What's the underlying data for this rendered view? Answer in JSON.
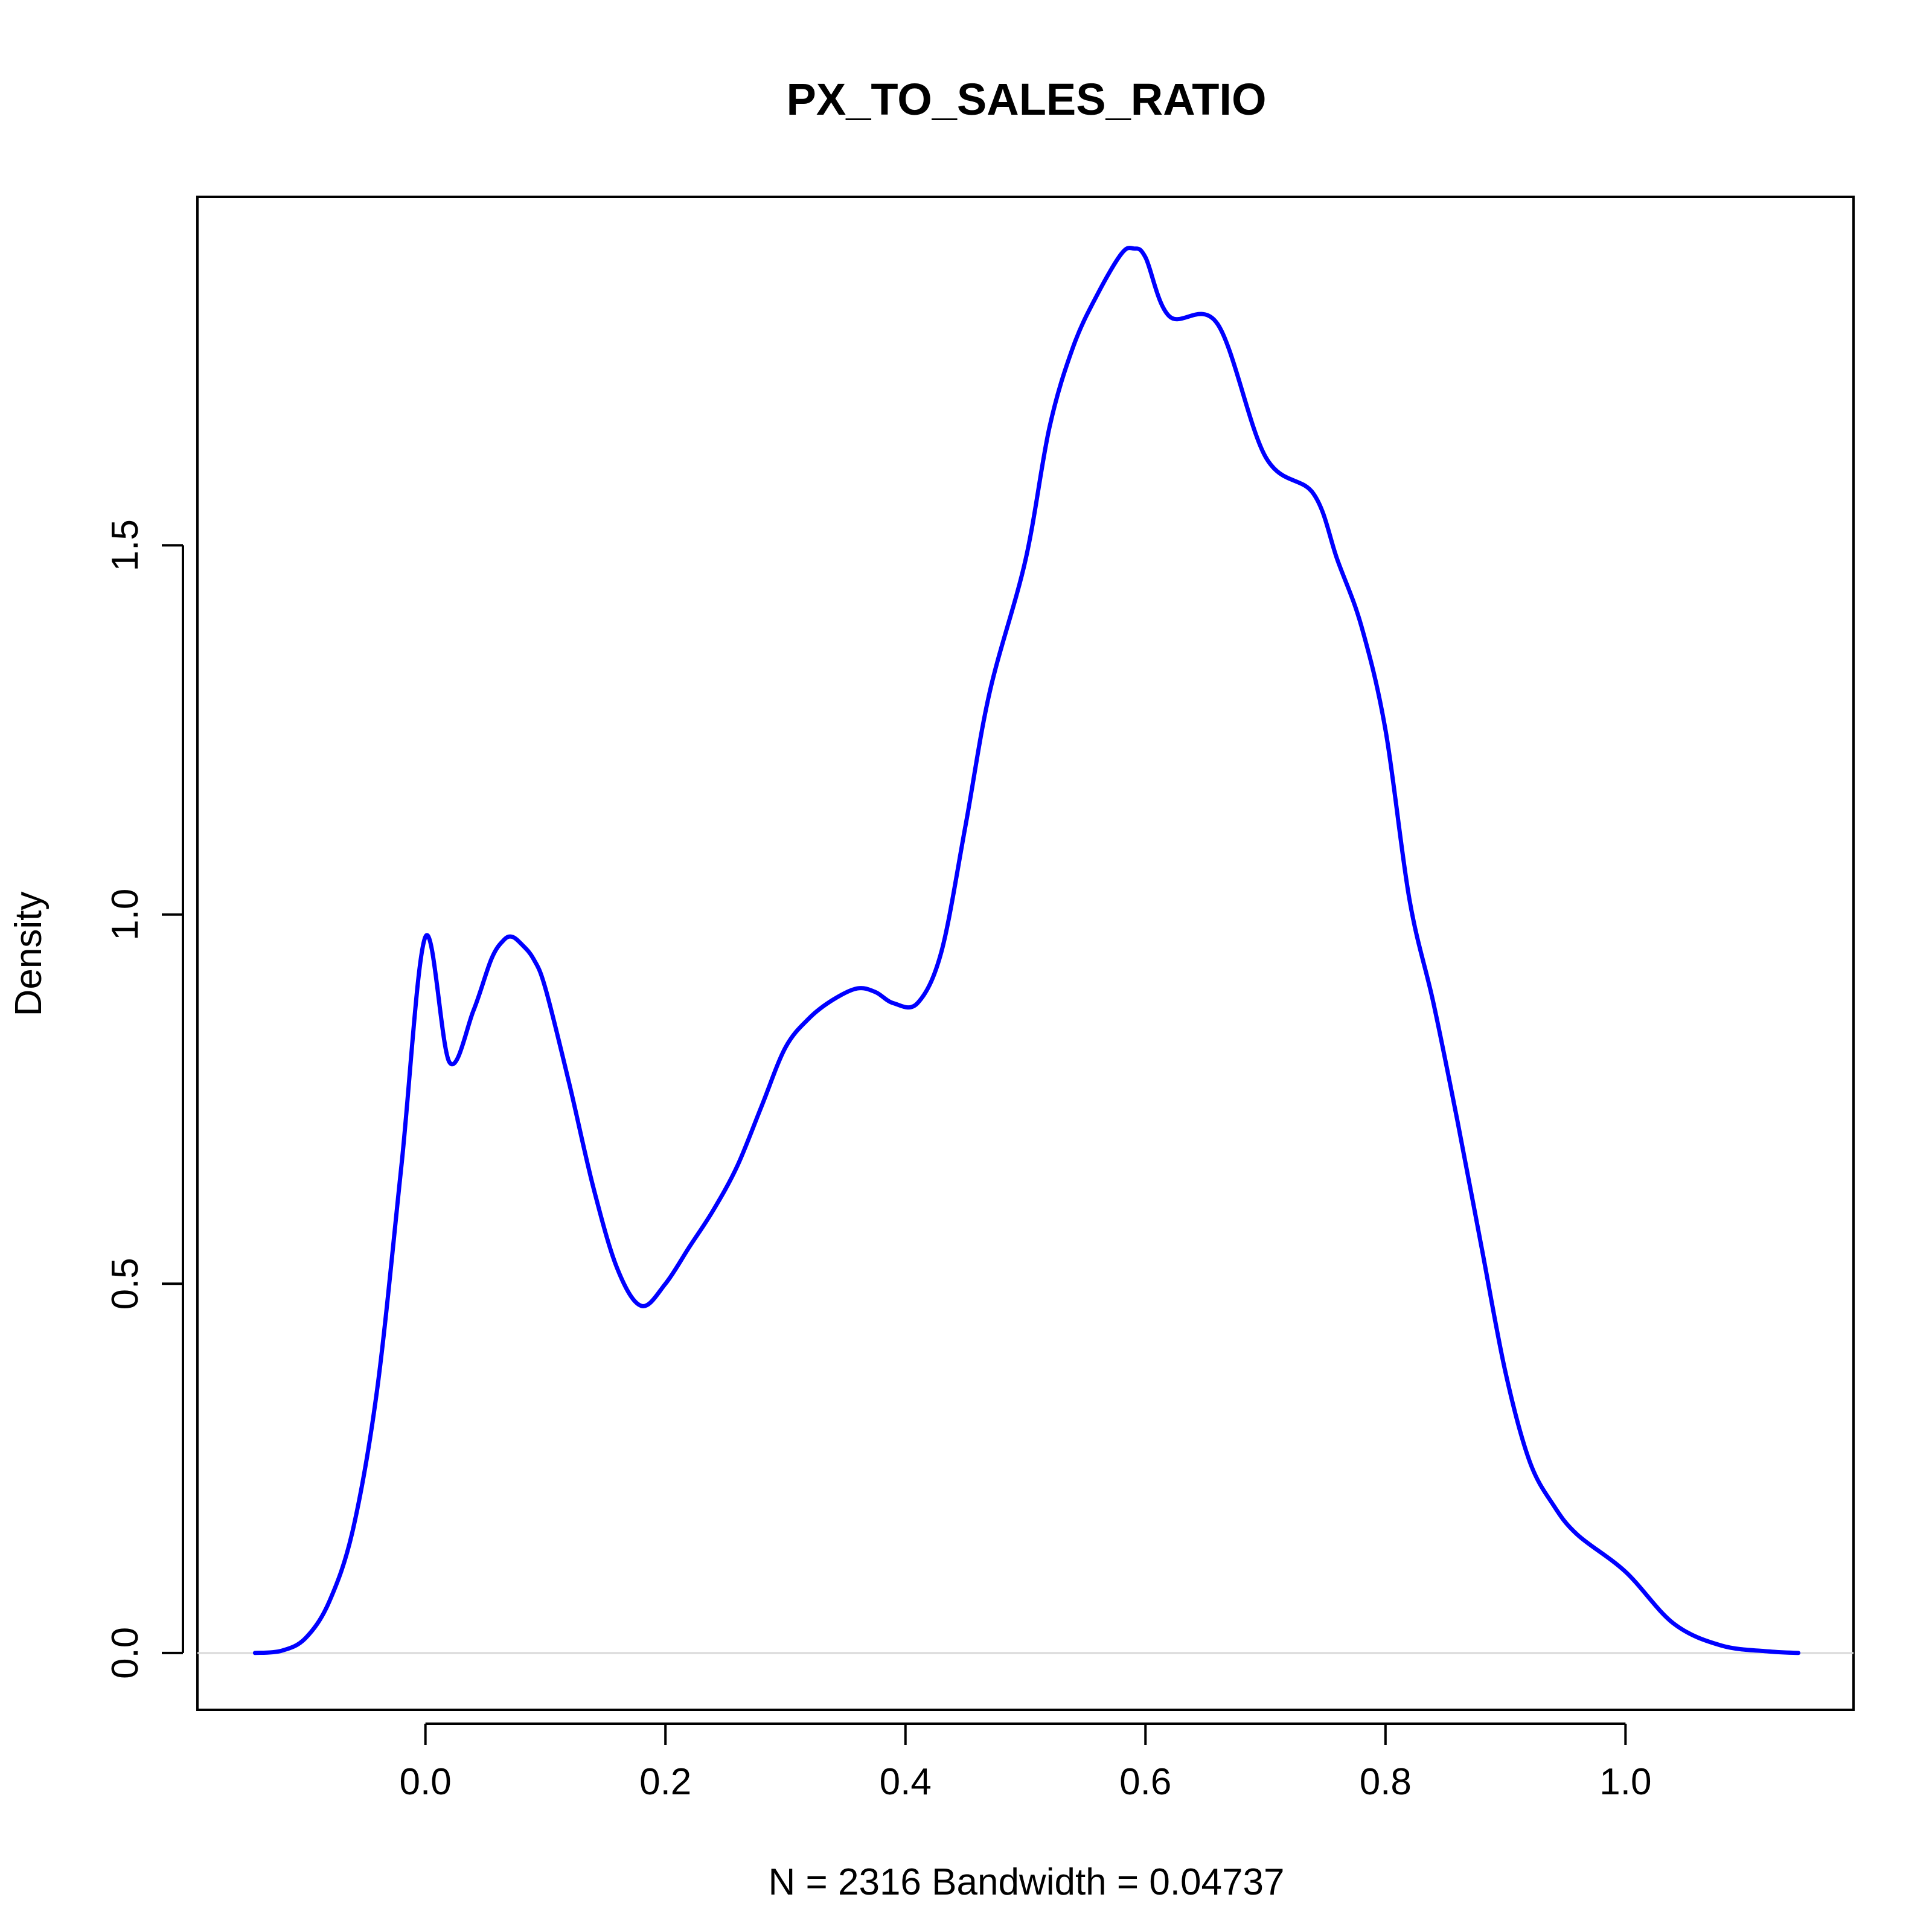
{
  "chart_data": {
    "type": "line",
    "title": "PX_TO_SALES_RATIO",
    "xlabel": "N = 2316   Bandwidth = 0.04737",
    "ylabel": "Density",
    "xlim": [
      -0.19,
      1.19
    ],
    "ylim": [
      -0.077,
      1.972
    ],
    "x_ticks": [
      0.0,
      0.2,
      0.4,
      0.6,
      0.8,
      1.0
    ],
    "x_tick_labels": [
      "0.0",
      "0.2",
      "0.4",
      "0.6",
      "0.8",
      "1.0"
    ],
    "y_ticks": [
      0.0,
      0.5,
      1.0,
      1.5
    ],
    "y_tick_labels": [
      "0.0",
      "0.5",
      "1.0",
      "1.5"
    ],
    "grid": false,
    "baseline": 0,
    "colors": {
      "line": "#0000ff",
      "baseline": "#d9d9d9",
      "axes": "#000000"
    },
    "series": [
      {
        "x": [
          -0.142,
          -0.12,
          -0.1,
          -0.08,
          -0.06,
          -0.04,
          -0.02,
          0.0,
          0.02,
          0.04,
          0.055,
          0.065,
          0.072,
          0.08,
          0.09,
          0.1,
          0.12,
          0.14,
          0.16,
          0.18,
          0.2,
          0.22,
          0.24,
          0.26,
          0.28,
          0.3,
          0.32,
          0.34,
          0.36,
          0.375,
          0.39,
          0.41,
          0.43,
          0.45,
          0.47,
          0.5,
          0.52,
          0.54,
          0.56,
          0.58,
          0.59,
          0.6,
          0.62,
          0.66,
          0.7,
          0.74,
          0.76,
          0.78,
          0.8,
          0.82,
          0.84,
          0.86,
          0.88,
          0.9,
          0.92,
          0.94,
          0.96,
          1.0,
          1.04,
          1.08,
          1.12,
          1.144
        ],
        "y": [
          0.0,
          0.003,
          0.02,
          0.07,
          0.17,
          0.36,
          0.66,
          0.97,
          0.8,
          0.87,
          0.94,
          0.965,
          0.97,
          0.96,
          0.94,
          0.9,
          0.77,
          0.63,
          0.52,
          0.47,
          0.5,
          0.55,
          0.6,
          0.66,
          0.74,
          0.82,
          0.86,
          0.885,
          0.9,
          0.895,
          0.88,
          0.88,
          0.95,
          1.12,
          1.3,
          1.48,
          1.66,
          1.77,
          1.84,
          1.895,
          1.902,
          1.89,
          1.81,
          1.8,
          1.62,
          1.57,
          1.48,
          1.39,
          1.25,
          1.02,
          0.88,
          0.72,
          0.55,
          0.38,
          0.26,
          0.2,
          0.16,
          0.11,
          0.04,
          0.01,
          0.002,
          0.0
        ]
      }
    ]
  }
}
